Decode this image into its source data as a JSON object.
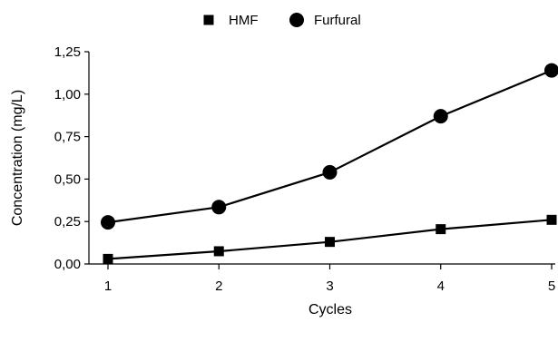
{
  "chart_data": {
    "type": "line",
    "title": "",
    "xlabel": "Cycles",
    "ylabel": "Concentration (mg/L)",
    "categories": [
      "1",
      "2",
      "3",
      "4",
      "5"
    ],
    "x": [
      1,
      2,
      3,
      4,
      5
    ],
    "xlim": [
      1,
      5
    ],
    "ylim": [
      0,
      1.25
    ],
    "y_ticks": [
      "0,00",
      "0,25",
      "0,50",
      "0,75",
      "1,00",
      "1,25"
    ],
    "y_tick_values": [
      0,
      0.25,
      0.5,
      0.75,
      1.0,
      1.25
    ],
    "grid": false,
    "legend_position": "top-center",
    "series": [
      {
        "name": "HMF",
        "marker": "square",
        "color": "#000000",
        "values": [
          0.03,
          0.075,
          0.13,
          0.205,
          0.26
        ]
      },
      {
        "name": "Furfural",
        "marker": "circle",
        "color": "#000000",
        "values": [
          0.245,
          0.335,
          0.54,
          0.87,
          1.14
        ]
      }
    ]
  }
}
